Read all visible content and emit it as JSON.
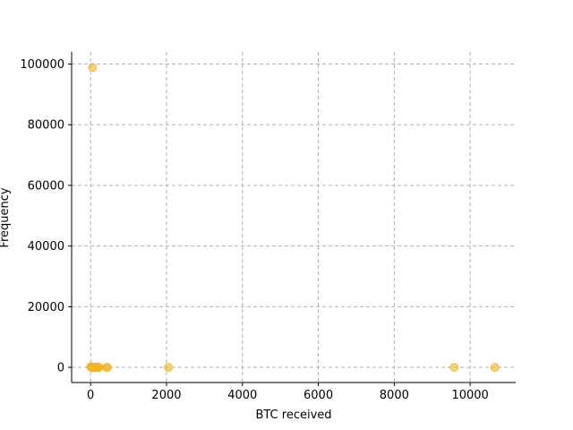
{
  "chart_data": {
    "type": "scatter",
    "title": "",
    "xlabel": "BTC received",
    "ylabel": "Frequency",
    "xlim": [
      -500,
      11200
    ],
    "ylim": [
      -5000,
      104000
    ],
    "xticks": [
      0,
      2000,
      4000,
      6000,
      8000,
      10000
    ],
    "yticks": [
      0,
      20000,
      40000,
      60000,
      80000,
      100000
    ],
    "grid": true,
    "legend": "none",
    "point_color": "#f0b429",
    "series": [
      {
        "points": [
          {
            "x": 5,
            "y": 200
          },
          {
            "x": 10,
            "y": 150
          },
          {
            "x": 15,
            "y": 120
          },
          {
            "x": 20,
            "y": 90
          },
          {
            "x": 25,
            "y": 80
          },
          {
            "x": 30,
            "y": 70
          },
          {
            "x": 40,
            "y": 60
          },
          {
            "x": 50,
            "y": 50
          },
          {
            "x": 60,
            "y": 40
          },
          {
            "x": 70,
            "y": 35
          },
          {
            "x": 80,
            "y": 30
          },
          {
            "x": 90,
            "y": 25
          },
          {
            "x": 100,
            "y": 20
          },
          {
            "x": 110,
            "y": 18
          },
          {
            "x": 120,
            "y": 15
          },
          {
            "x": 130,
            "y": 12
          },
          {
            "x": 140,
            "y": 10
          },
          {
            "x": 150,
            "y": 8
          },
          {
            "x": 160,
            "y": 6
          },
          {
            "x": 170,
            "y": 5
          },
          {
            "x": 180,
            "y": 4
          },
          {
            "x": 200,
            "y": 3
          },
          {
            "x": 220,
            "y": 2
          },
          {
            "x": 420,
            "y": 2
          },
          {
            "x": 440,
            "y": 1
          },
          {
            "x": 50,
            "y": 98900
          },
          {
            "x": 2050,
            "y": 1
          },
          {
            "x": 9580,
            "y": 1
          },
          {
            "x": 10650,
            "y": 1
          }
        ]
      }
    ]
  }
}
